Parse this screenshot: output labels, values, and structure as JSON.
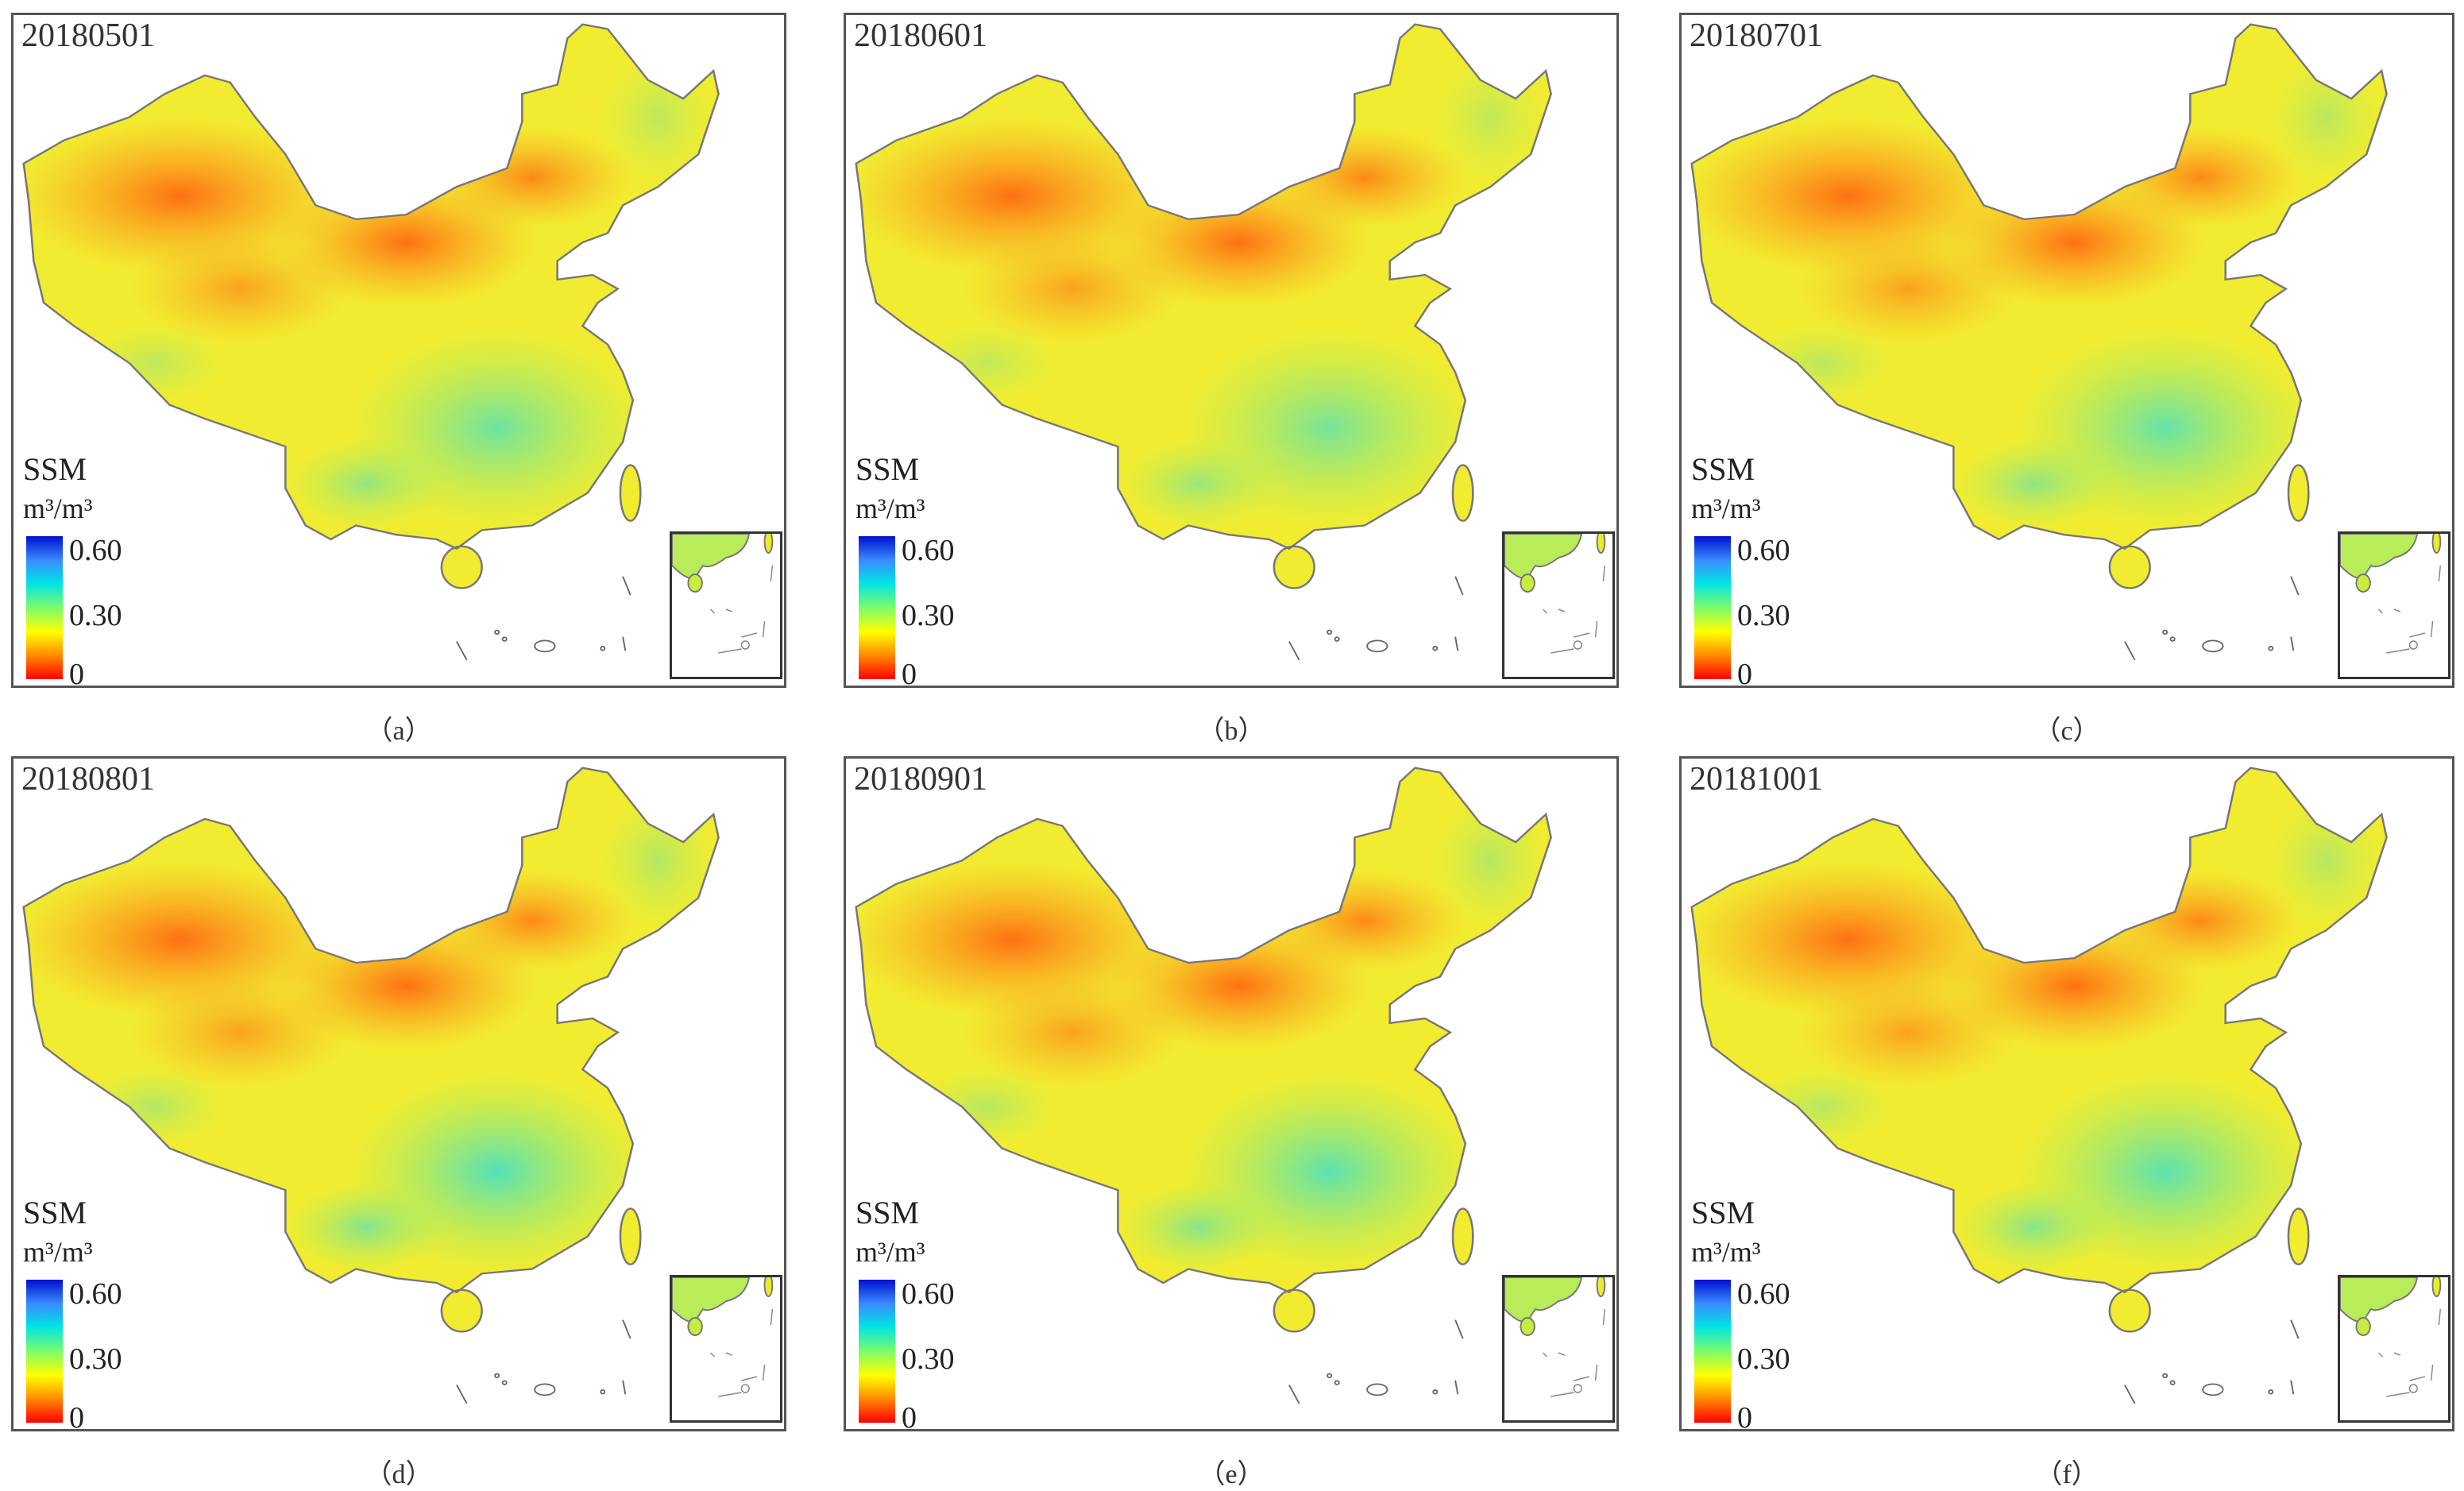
{
  "colorbar": {
    "title": "SSM",
    "unit": "m³/m³",
    "ticks": [
      "0.60",
      "0.30",
      "0"
    ],
    "range": [
      0,
      0.6
    ],
    "colors": [
      "#ff0000",
      "#ff8c00",
      "#ffff00",
      "#7cfc6a",
      "#00e5e5",
      "#3a8cff",
      "#0010d0"
    ]
  },
  "panels": [
    {
      "date": "20180501",
      "caption": "（a）"
    },
    {
      "date": "20180601",
      "caption": "（b）"
    },
    {
      "date": "20180701",
      "caption": "（c）"
    },
    {
      "date": "20180801",
      "caption": "（d）"
    },
    {
      "date": "20180901",
      "caption": "（e）"
    },
    {
      "date": "20181001",
      "caption": "（f）"
    }
  ]
}
